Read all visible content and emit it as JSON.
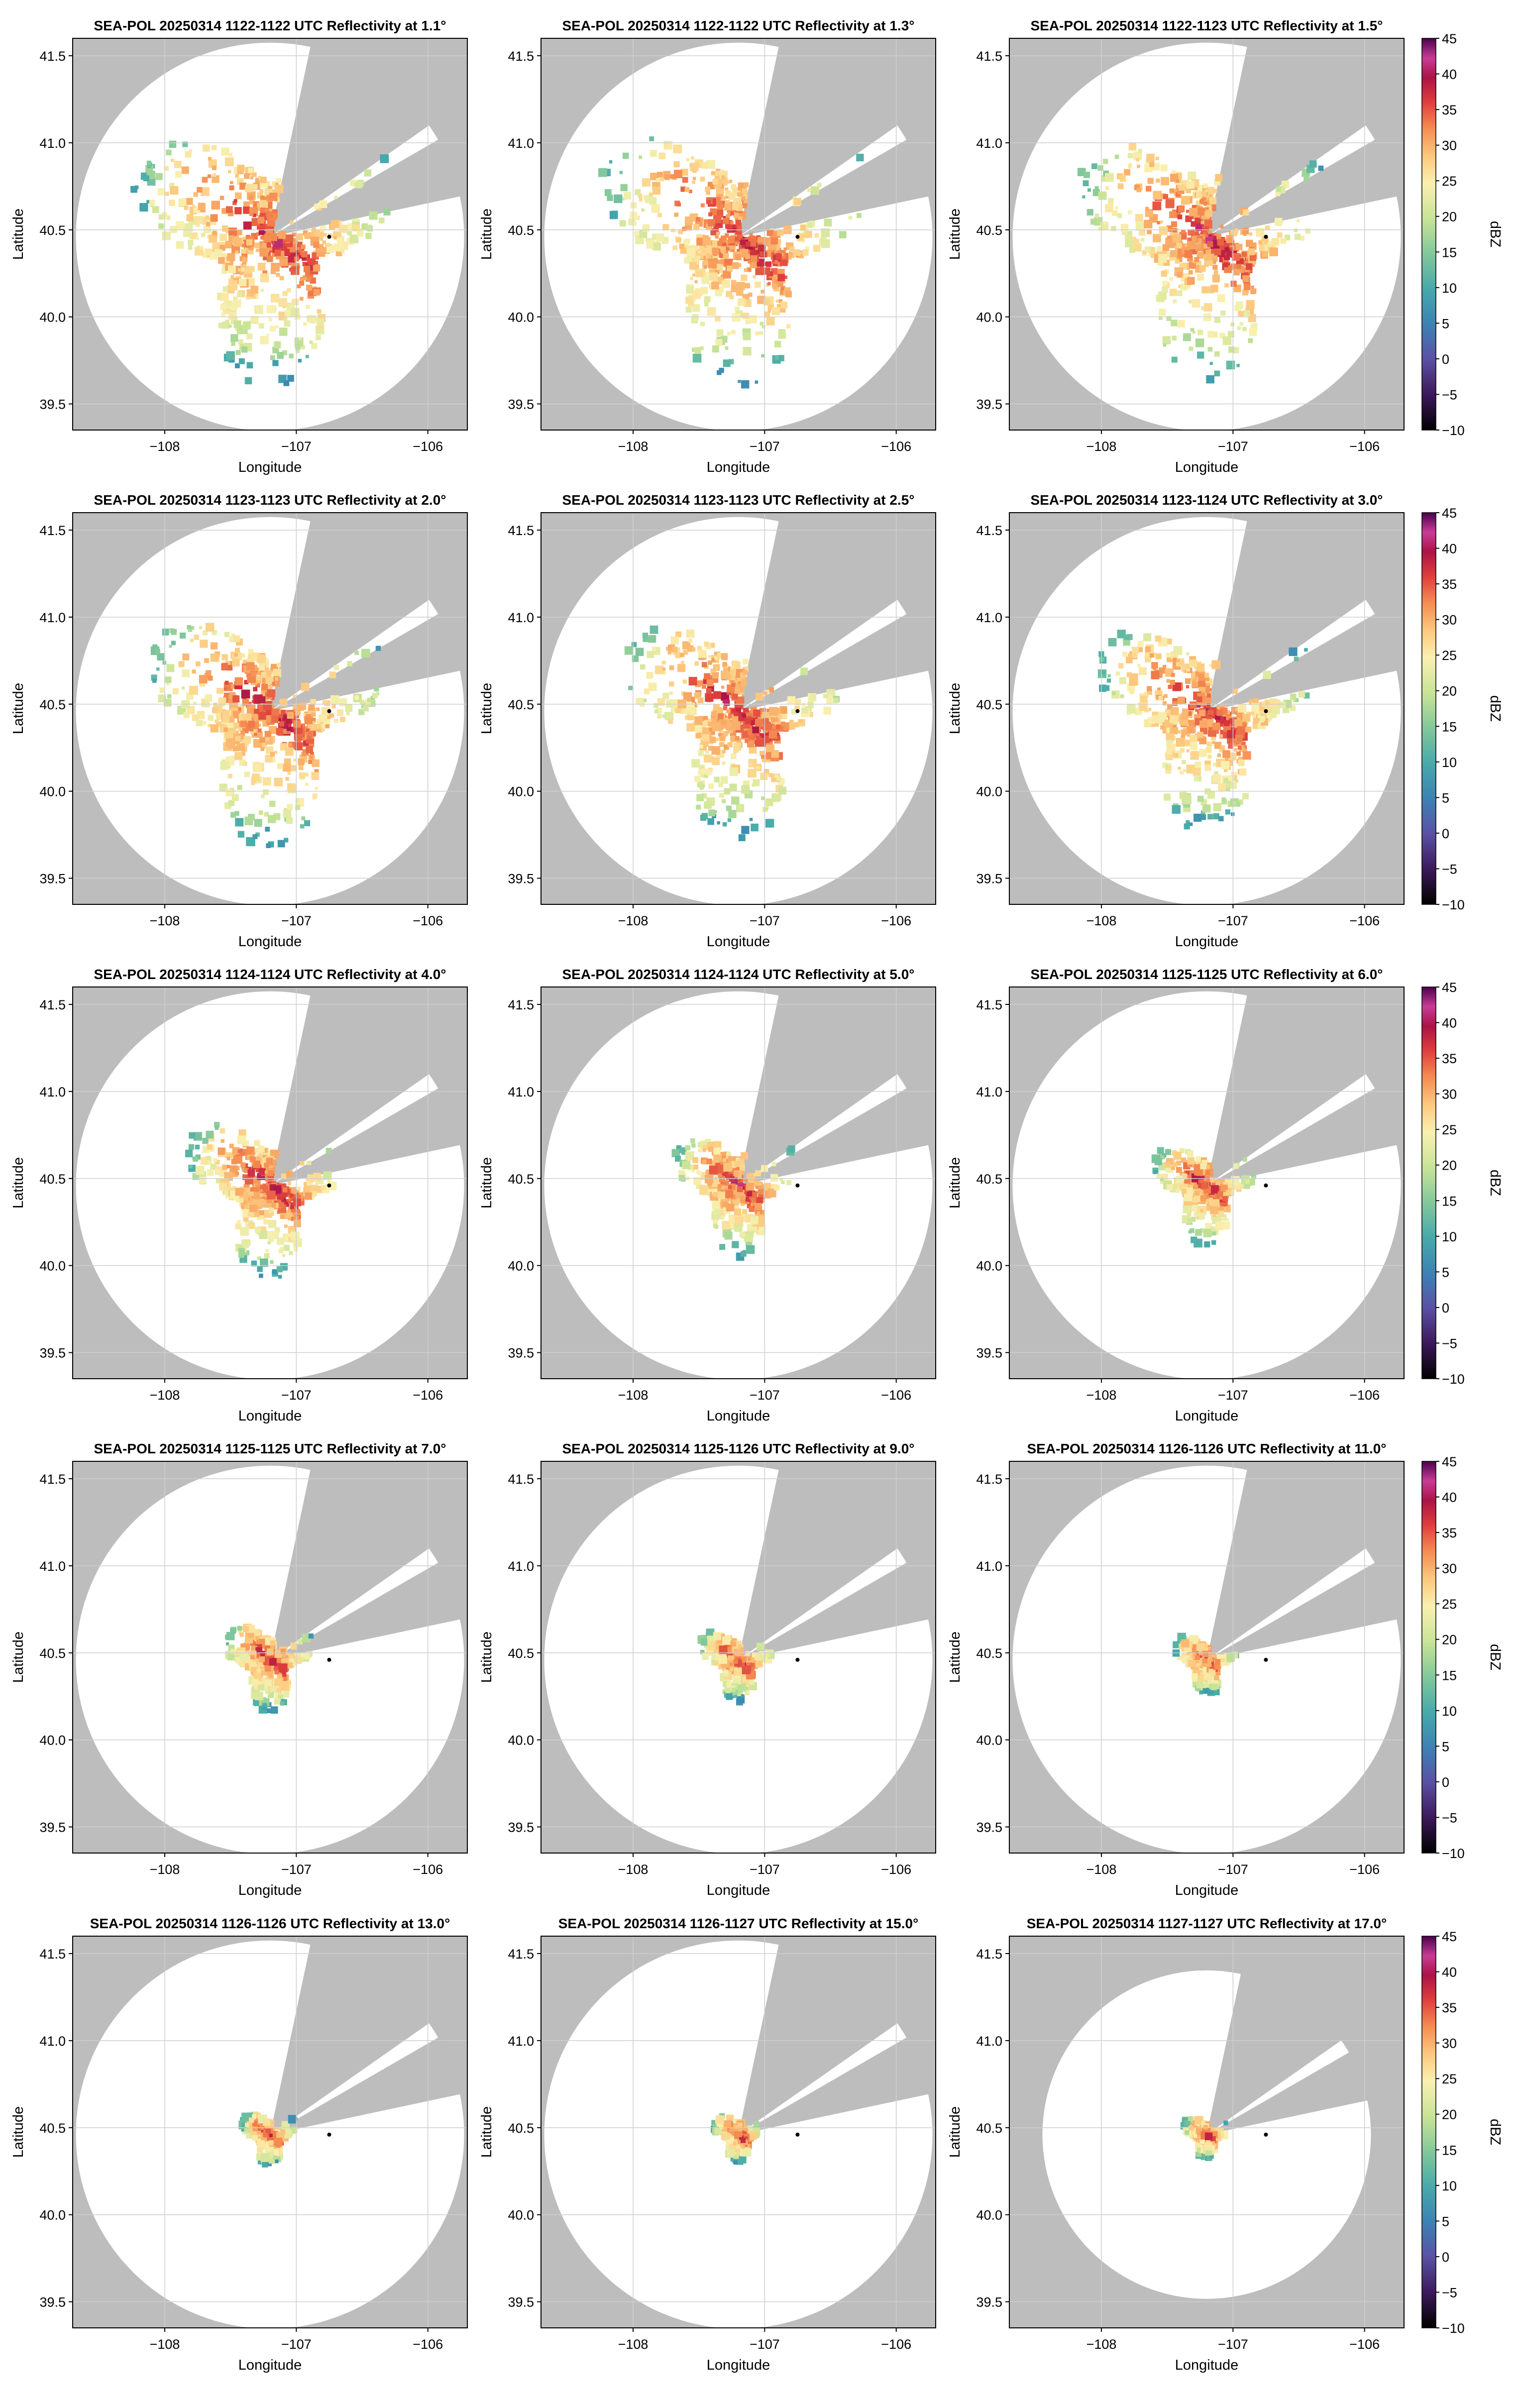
{
  "figure": {
    "suptitle_prefix": "SEA-POL 20250314",
    "xlabel": "Longitude",
    "ylabel": "Latitude",
    "colorbar_label": "dBZ",
    "colorbar_ticks": [
      "45",
      "40",
      "35",
      "30",
      "25",
      "20",
      "15",
      "10",
      "5",
      "0",
      "−5",
      "−10"
    ]
  },
  "chart_data": [
    {
      "type": "heatmap",
      "title": "SEA-POL 20250314 1122-1122 UTC Reflectivity at 1.1°",
      "elevation_deg": 1.1,
      "echo_extent_deg": 1.05,
      "xlabel": "Longitude",
      "ylabel": "Latitude",
      "xlim": [
        -108.7,
        -105.7
      ],
      "ylim": [
        39.35,
        41.6
      ],
      "xticks": [
        "−108",
        "−107",
        "−106"
      ],
      "yticks": [
        "41.5",
        "41.0",
        "40.5",
        "40.0",
        "39.5"
      ],
      "colorbar_range": [
        -10,
        45
      ],
      "colorbar_label": "dBZ",
      "radar_location": [
        -107.2,
        40.46
      ],
      "marker": [
        -106.75,
        40.46
      ]
    },
    {
      "type": "heatmap",
      "title": "SEA-POL 20250314 1122-1122 UTC Reflectivity at 1.3°",
      "elevation_deg": 1.3,
      "echo_extent_deg": 1.05,
      "xlabel": "Longitude",
      "ylabel": "Latitude",
      "xlim": [
        -108.7,
        -105.7
      ],
      "ylim": [
        39.35,
        41.6
      ],
      "xticks": [
        "−108",
        "−107",
        "−106"
      ],
      "yticks": [
        "41.5",
        "41.0",
        "40.5",
        "40.0",
        "39.5"
      ],
      "colorbar_range": [
        -10,
        45
      ],
      "colorbar_label": "dBZ",
      "radar_location": [
        -107.2,
        40.46
      ],
      "marker": [
        -106.75,
        40.46
      ]
    },
    {
      "type": "heatmap",
      "title": "SEA-POL 20250314 1122-1123 UTC Reflectivity at 1.5°",
      "elevation_deg": 1.5,
      "echo_extent_deg": 1.0,
      "xlabel": "Longitude",
      "ylabel": "Latitude",
      "xlim": [
        -108.7,
        -105.7
      ],
      "ylim": [
        39.35,
        41.6
      ],
      "xticks": [
        "−108",
        "−107",
        "−106"
      ],
      "yticks": [
        "41.5",
        "41.0",
        "40.5",
        "40.0",
        "39.5"
      ],
      "colorbar_range": [
        -10,
        45
      ],
      "colorbar_label": "dBZ",
      "radar_location": [
        -107.2,
        40.46
      ],
      "marker": [
        -106.75,
        40.46
      ]
    },
    {
      "type": "heatmap",
      "title": "SEA-POL 20250314 1123-1123 UTC Reflectivity at 2.0°",
      "elevation_deg": 2.0,
      "echo_extent_deg": 0.95,
      "xlabel": "Longitude",
      "ylabel": "Latitude",
      "xlim": [
        -108.7,
        -105.7
      ],
      "ylim": [
        39.35,
        41.6
      ],
      "xticks": [
        "−108",
        "−107",
        "−106"
      ],
      "yticks": [
        "41.5",
        "41.0",
        "40.5",
        "40.0",
        "39.5"
      ],
      "colorbar_range": [
        -10,
        45
      ],
      "colorbar_label": "dBZ",
      "radar_location": [
        -107.2,
        40.46
      ],
      "marker": [
        -106.75,
        40.46
      ]
    },
    {
      "type": "heatmap",
      "title": "SEA-POL 20250314 1123-1123 UTC Reflectivity at 2.5°",
      "elevation_deg": 2.5,
      "echo_extent_deg": 0.9,
      "xlabel": "Longitude",
      "ylabel": "Latitude",
      "xlim": [
        -108.7,
        -105.7
      ],
      "ylim": [
        39.35,
        41.6
      ],
      "xticks": [
        "−108",
        "−107",
        "−106"
      ],
      "yticks": [
        "41.5",
        "41.0",
        "40.5",
        "40.0",
        "39.5"
      ],
      "colorbar_range": [
        -10,
        45
      ],
      "colorbar_label": "dBZ",
      "radar_location": [
        -107.2,
        40.46
      ],
      "marker": [
        -106.75,
        40.46
      ]
    },
    {
      "type": "heatmap",
      "title": "SEA-POL 20250314 1123-1124 UTC Reflectivity at 3.0°",
      "elevation_deg": 3.0,
      "echo_extent_deg": 0.85,
      "xlabel": "Longitude",
      "ylabel": "Latitude",
      "xlim": [
        -108.7,
        -105.7
      ],
      "ylim": [
        39.35,
        41.6
      ],
      "xticks": [
        "−108",
        "−107",
        "−106"
      ],
      "yticks": [
        "41.5",
        "41.0",
        "40.5",
        "40.0",
        "39.5"
      ],
      "colorbar_range": [
        -10,
        45
      ],
      "colorbar_label": "dBZ",
      "radar_location": [
        -107.2,
        40.46
      ],
      "marker": [
        -106.75,
        40.46
      ]
    },
    {
      "type": "heatmap",
      "title": "SEA-POL 20250314 1124-1124 UTC Reflectivity at 4.0°",
      "elevation_deg": 4.0,
      "echo_extent_deg": 0.65,
      "xlabel": "Longitude",
      "ylabel": "Latitude",
      "xlim": [
        -108.7,
        -105.7
      ],
      "ylim": [
        39.35,
        41.6
      ],
      "xticks": [
        "−108",
        "−107",
        "−106"
      ],
      "yticks": [
        "41.5",
        "41.0",
        "40.5",
        "40.0",
        "39.5"
      ],
      "colorbar_range": [
        -10,
        45
      ],
      "colorbar_label": "dBZ",
      "radar_location": [
        -107.2,
        40.46
      ],
      "marker": [
        -106.75,
        40.46
      ]
    },
    {
      "type": "heatmap",
      "title": "SEA-POL 20250314 1124-1124 UTC Reflectivity at 5.0°",
      "elevation_deg": 5.0,
      "echo_extent_deg": 0.5,
      "xlabel": "Longitude",
      "ylabel": "Latitude",
      "xlim": [
        -108.7,
        -105.7
      ],
      "ylim": [
        39.35,
        41.6
      ],
      "xticks": [
        "−108",
        "−107",
        "−106"
      ],
      "yticks": [
        "41.5",
        "41.0",
        "40.5",
        "40.0",
        "39.5"
      ],
      "colorbar_range": [
        -10,
        45
      ],
      "colorbar_label": "dBZ",
      "radar_location": [
        -107.2,
        40.46
      ],
      "marker": [
        -106.75,
        40.46
      ]
    },
    {
      "type": "heatmap",
      "title": "SEA-POL 20250314 1125-1125 UTC Reflectivity at 6.0°",
      "elevation_deg": 6.0,
      "echo_extent_deg": 0.42,
      "xlabel": "Longitude",
      "ylabel": "Latitude",
      "xlim": [
        -108.7,
        -105.7
      ],
      "ylim": [
        39.35,
        41.6
      ],
      "xticks": [
        "−108",
        "−107",
        "−106"
      ],
      "yticks": [
        "41.5",
        "41.0",
        "40.5",
        "40.0",
        "39.5"
      ],
      "colorbar_range": [
        -10,
        45
      ],
      "colorbar_label": "dBZ",
      "radar_location": [
        -107.2,
        40.46
      ],
      "marker": [
        -106.75,
        40.46
      ]
    },
    {
      "type": "heatmap",
      "title": "SEA-POL 20250314 1125-1125 UTC Reflectivity at 7.0°",
      "elevation_deg": 7.0,
      "echo_extent_deg": 0.36,
      "xlabel": "Longitude",
      "ylabel": "Latitude",
      "xlim": [
        -108.7,
        -105.7
      ],
      "ylim": [
        39.35,
        41.6
      ],
      "xticks": [
        "−108",
        "−107",
        "−106"
      ],
      "yticks": [
        "41.5",
        "41.0",
        "40.5",
        "40.0",
        "39.5"
      ],
      "colorbar_range": [
        -10,
        45
      ],
      "colorbar_label": "dBZ",
      "radar_location": [
        -107.2,
        40.46
      ],
      "marker": [
        -106.75,
        40.46
      ]
    },
    {
      "type": "heatmap",
      "title": "SEA-POL 20250314 1125-1126 UTC Reflectivity at 9.0°",
      "elevation_deg": 9.0,
      "echo_extent_deg": 0.3,
      "xlabel": "Longitude",
      "ylabel": "Latitude",
      "xlim": [
        -108.7,
        -105.7
      ],
      "ylim": [
        39.35,
        41.6
      ],
      "xticks": [
        "−108",
        "−107",
        "−106"
      ],
      "yticks": [
        "41.5",
        "41.0",
        "40.5",
        "40.0",
        "39.5"
      ],
      "colorbar_range": [
        -10,
        45
      ],
      "colorbar_label": "dBZ",
      "radar_location": [
        -107.2,
        40.46
      ],
      "marker": [
        -106.75,
        40.46
      ]
    },
    {
      "type": "heatmap",
      "title": "SEA-POL 20250314 1126-1126 UTC Reflectivity at 11.0°",
      "elevation_deg": 11.0,
      "echo_extent_deg": 0.25,
      "xlabel": "Longitude",
      "ylabel": "Latitude",
      "xlim": [
        -108.7,
        -105.7
      ],
      "ylim": [
        39.35,
        41.6
      ],
      "xticks": [
        "−108",
        "−107",
        "−106"
      ],
      "yticks": [
        "41.5",
        "41.0",
        "40.5",
        "40.0",
        "39.5"
      ],
      "colorbar_range": [
        -10,
        45
      ],
      "colorbar_label": "dBZ",
      "radar_location": [
        -107.2,
        40.46
      ],
      "marker": [
        -106.75,
        40.46
      ]
    },
    {
      "type": "heatmap",
      "title": "SEA-POL 20250314 1126-1126 UTC Reflectivity at 13.0°",
      "elevation_deg": 13.0,
      "echo_extent_deg": 0.22,
      "xlabel": "Longitude",
      "ylabel": "Latitude",
      "xlim": [
        -108.7,
        -105.7
      ],
      "ylim": [
        39.35,
        41.6
      ],
      "xticks": [
        "−108",
        "−107",
        "−106"
      ],
      "yticks": [
        "41.5",
        "41.0",
        "40.5",
        "40.0",
        "39.5"
      ],
      "colorbar_range": [
        -10,
        45
      ],
      "colorbar_label": "dBZ",
      "radar_location": [
        -107.2,
        40.46
      ],
      "marker": [
        -106.75,
        40.46
      ]
    },
    {
      "type": "heatmap",
      "title": "SEA-POL 20250314 1126-1127 UTC Reflectivity at 15.0°",
      "elevation_deg": 15.0,
      "echo_extent_deg": 0.2,
      "xlabel": "Longitude",
      "ylabel": "Latitude",
      "xlim": [
        -108.7,
        -105.7
      ],
      "ylim": [
        39.35,
        41.6
      ],
      "xticks": [
        "−108",
        "−107",
        "−106"
      ],
      "yticks": [
        "41.5",
        "41.0",
        "40.5",
        "40.0",
        "39.5"
      ],
      "colorbar_range": [
        -10,
        45
      ],
      "colorbar_label": "dBZ",
      "radar_location": [
        -107.2,
        40.46
      ],
      "marker": [
        -106.75,
        40.46
      ]
    },
    {
      "type": "heatmap",
      "title": "SEA-POL 20250314 1127-1127 UTC Reflectivity at 17.0°",
      "elevation_deg": 17.0,
      "echo_extent_deg": 0.18,
      "xlabel": "Longitude",
      "ylabel": "Latitude",
      "xlim": [
        -108.7,
        -105.7
      ],
      "ylim": [
        39.35,
        41.6
      ],
      "xticks": [
        "−108",
        "−107",
        "−106"
      ],
      "yticks": [
        "41.5",
        "41.0",
        "40.5",
        "40.0",
        "39.5"
      ],
      "colorbar_range": [
        -10,
        45
      ],
      "colorbar_label": "dBZ",
      "radar_location": [
        -107.2,
        40.46
      ],
      "marker": [
        -106.75,
        40.46
      ]
    }
  ]
}
